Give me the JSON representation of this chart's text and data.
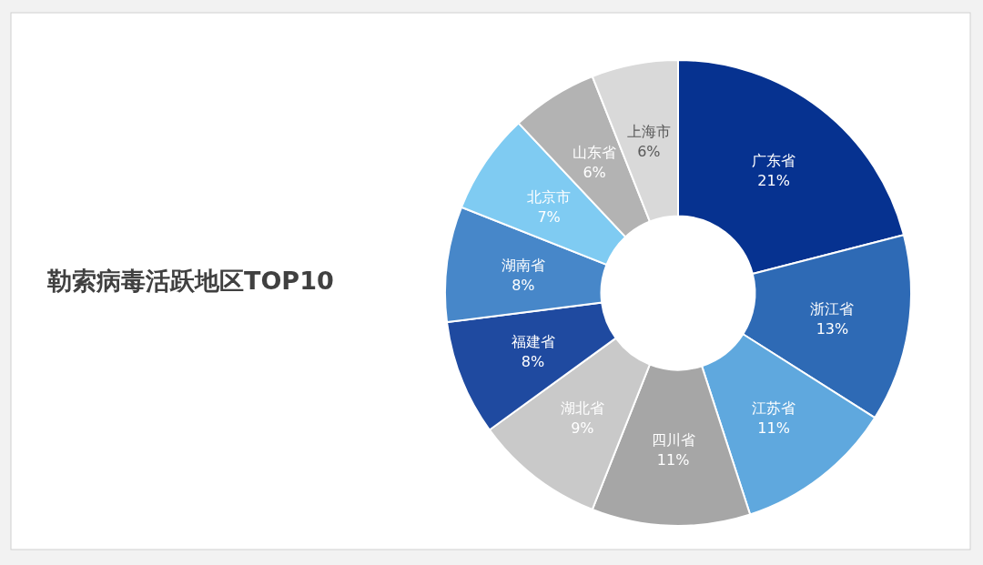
{
  "chart_data": {
    "type": "donut",
    "title": "勒索病毒活跃地区TOP10",
    "categories": [
      "广东省",
      "浙江省",
      "江苏省",
      "四川省",
      "湖北省",
      "福建省",
      "湖南省",
      "北京市",
      "山东省",
      "上海市"
    ],
    "values": [
      21,
      13,
      11,
      11,
      9,
      8,
      8,
      7,
      6,
      6
    ],
    "colors": [
      "#063290",
      "#2e6ab5",
      "#5fa8de",
      "#a6a6a6",
      "#c9c9c9",
      "#1f4aa0",
      "#4787c9",
      "#7fcbf2",
      "#b3b3b3",
      "#d9d9d9"
    ],
    "value_labels": [
      "21%",
      "13%",
      "11%",
      "11%",
      "9%",
      "8%",
      "8%",
      "7%",
      "6%",
      "6%"
    ]
  }
}
